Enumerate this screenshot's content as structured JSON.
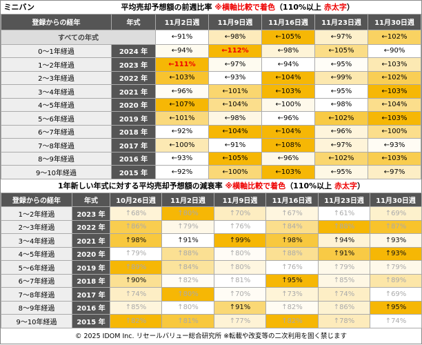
{
  "top": {
    "corner": "ミニバン",
    "title": [
      "平均売却予想額の前週比率 ",
      "※横軸比較で着色",
      "（110%以上 ",
      "赤太字",
      "）"
    ],
    "headers": [
      "登録からの経年",
      "年式",
      "11月2日週",
      "11月9日週",
      "11月16日週",
      "11月23日週",
      "11月30日週"
    ],
    "all_row": {
      "label": "すべての年式",
      "cells": [
        "←91%",
        "←98%",
        "←105%",
        "←97%",
        "←102%"
      ]
    },
    "rows": [
      {
        "label": "0〜1年経過",
        "year": "2024 年",
        "cells": [
          "←94%",
          "←112%",
          "←98%",
          "←105%",
          "←90%"
        ]
      },
      {
        "label": "1〜2年経過",
        "year": "2023 年",
        "cells": [
          "←111%",
          "←97%",
          "←94%",
          "←95%",
          "←103%"
        ]
      },
      {
        "label": "2〜3年経過",
        "year": "2022 年",
        "cells": [
          "←103%",
          "←93%",
          "←104%",
          "←99%",
          "←102%"
        ]
      },
      {
        "label": "3〜4年経過",
        "year": "2021 年",
        "cells": [
          "←96%",
          "←101%",
          "←103%",
          "←95%",
          "←103%"
        ]
      },
      {
        "label": "4〜5年経過",
        "year": "2020 年",
        "cells": [
          "←107%",
          "←104%",
          "←100%",
          "←98%",
          "←104%"
        ]
      },
      {
        "label": "5〜6年経過",
        "year": "2019 年",
        "cells": [
          "←101%",
          "←98%",
          "←96%",
          "←102%",
          "←103%"
        ]
      },
      {
        "label": "6〜7年経過",
        "year": "2018 年",
        "cells": [
          "←92%",
          "←104%",
          "←104%",
          "←96%",
          "←100%"
        ]
      },
      {
        "label": "7〜8年経過",
        "year": "2017 年",
        "cells": [
          "←100%",
          "←91%",
          "←108%",
          "←97%",
          "←93%"
        ]
      },
      {
        "label": "8〜9年経過",
        "year": "2016 年",
        "cells": [
          "←93%",
          "←105%",
          "←96%",
          "←102%",
          "←103%"
        ]
      },
      {
        "label": "9〜10年経過",
        "year": "2015 年",
        "cells": [
          "←92%",
          "←100%",
          "←103%",
          "←95%",
          "←97%"
        ]
      }
    ]
  },
  "bottom": {
    "title": [
      "1年新しい年式に対する平均売却予想額の減衰率 ",
      "※横軸比較で着色",
      "（110%以上 ",
      "赤太字",
      "）"
    ],
    "headers": [
      "登録からの経年",
      "年式",
      "10月26日週",
      "11月2日週",
      "11月9日週",
      "11月16日週",
      "11月23日週",
      "11月30日週"
    ],
    "rows": [
      {
        "label": "1〜2年経過",
        "year": "2023 年",
        "cells": [
          "↑68%",
          "↑80%",
          "↑70%",
          "↑67%",
          "↑61%",
          "↑69%"
        ]
      },
      {
        "label": "2〜3年経過",
        "year": "2022 年",
        "cells": [
          "↑86%",
          "↑79%",
          "↑76%",
          "↑84%",
          "↑88%",
          "↑87%"
        ]
      },
      {
        "label": "3〜4年経過",
        "year": "2021 年",
        "cells": [
          "↑98%",
          "↑91%",
          "↑99%",
          "↑98%",
          "↑94%",
          "↑93%"
        ]
      },
      {
        "label": "4〜5年経過",
        "year": "2020 年",
        "cells": [
          "↑79%",
          "↑88%",
          "↑80%",
          "↑88%",
          "↑91%",
          "↑93%"
        ]
      },
      {
        "label": "5〜6年経過",
        "year": "2019 年",
        "cells": [
          "↑89%",
          "↑84%",
          "↑80%",
          "↑76%",
          "↑79%",
          "↑79%"
        ]
      },
      {
        "label": "6〜7年経過",
        "year": "2018 年",
        "cells": [
          "↑90%",
          "↑82%",
          "↑81%",
          "↑95%",
          "↑85%",
          "↑89%"
        ]
      },
      {
        "label": "7〜8年経過",
        "year": "2017 年",
        "cells": [
          "↑74%",
          "↑80%",
          "↑70%",
          "↑73%",
          "↑74%",
          "↑69%"
        ]
      },
      {
        "label": "8〜9年経過",
        "year": "2016 年",
        "cells": [
          "↑85%",
          "↑80%",
          "↑91%",
          "↑82%",
          "↑86%",
          "↑95%"
        ]
      },
      {
        "label": "9〜10年経過",
        "year": "2015 年",
        "cells": [
          "↑82%",
          "↑81%",
          "↑77%",
          "↑82%",
          "↑78%",
          "↑74%"
        ]
      }
    ]
  },
  "footer": "© 2025 IDOM Inc. リセールバリュー総合研究所 ※転載や改変等の二次利用を固く禁じます"
}
